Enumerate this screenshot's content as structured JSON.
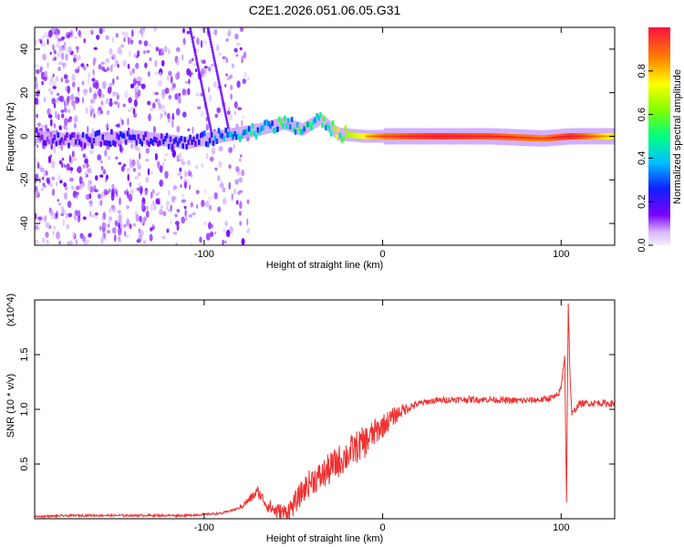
{
  "title": "C2E1.2026.051.06.05.G31",
  "colors": {
    "snr_line": "#f03030",
    "axis": "#000000",
    "background": "#ffffff"
  },
  "chart_data": [
    {
      "type": "heatmap",
      "name": "spectrogram",
      "xlabel": "Height of straight line (km)",
      "ylabel": "Frequency (Hz)",
      "xlim": [
        -195,
        130
      ],
      "ylim": [
        -50,
        50
      ],
      "xticks": [
        -100,
        0,
        100
      ],
      "yticks": [
        -40,
        -20,
        0,
        20,
        40
      ],
      "xtick_labels": [
        "-100",
        "0",
        "100"
      ],
      "ytick_labels": [
        "-40",
        "-20",
        "0",
        "20",
        "40"
      ],
      "colorbar": {
        "label": "Normalized spectral amplitude",
        "range": [
          0,
          1
        ],
        "ticks": [
          0.0,
          0.2,
          0.4,
          0.6,
          0.8
        ],
        "tick_labels": [
          "0.0",
          "0.2",
          "0.4",
          "0.6",
          "0.8"
        ]
      },
      "ridge": [
        {
          "x": -195,
          "f": 0,
          "amp": 0.15
        },
        {
          "x": -170,
          "f": -2,
          "amp": 0.2
        },
        {
          "x": -140,
          "f": 0,
          "amp": 0.2
        },
        {
          "x": -110,
          "f": -3,
          "amp": 0.2
        },
        {
          "x": -90,
          "f": 0,
          "amp": 0.3
        },
        {
          "x": -70,
          "f": 3,
          "amp": 0.4
        },
        {
          "x": -55,
          "f": 6,
          "amp": 0.45
        },
        {
          "x": -45,
          "f": 3,
          "amp": 0.45
        },
        {
          "x": -35,
          "f": 8,
          "amp": 0.45
        },
        {
          "x": -25,
          "f": 1,
          "amp": 0.6
        },
        {
          "x": -10,
          "f": 0,
          "amp": 0.75
        },
        {
          "x": 0,
          "f": 0,
          "amp": 0.85
        },
        {
          "x": 30,
          "f": 0,
          "amp": 0.95
        },
        {
          "x": 60,
          "f": 0,
          "amp": 0.9
        },
        {
          "x": 90,
          "f": -1,
          "amp": 0.85
        },
        {
          "x": 105,
          "f": 0,
          "amp": 0.95
        },
        {
          "x": 130,
          "f": 0,
          "amp": 0.7
        }
      ]
    },
    {
      "type": "line",
      "name": "snr",
      "xlabel": "Height of straight line (km)",
      "ylabel": "SNR (10 * v/v)",
      "y_scale_label": "(x10^4)",
      "xlim": [
        -195,
        130
      ],
      "ylim": [
        0,
        2.0
      ],
      "xticks": [
        -100,
        0,
        100
      ],
      "yticks": [
        0.5,
        1.0,
        1.5
      ],
      "xtick_labels": [
        "-100",
        "0",
        "100"
      ],
      "ytick_labels": [
        "0.5",
        "1.0",
        "1.5"
      ],
      "series": [
        {
          "name": "SNR",
          "x": [
            -195,
            -170,
            -140,
            -110,
            -90,
            -80,
            -75,
            -70,
            -65,
            -60,
            -55,
            -50,
            -45,
            -40,
            -35,
            -30,
            -25,
            -20,
            -15,
            -10,
            -5,
            0,
            5,
            10,
            15,
            20,
            25,
            30,
            40,
            50,
            60,
            70,
            80,
            90,
            98,
            100,
            102,
            103,
            104,
            105,
            106,
            108,
            110,
            120,
            130
          ],
          "values": [
            0.02,
            0.03,
            0.03,
            0.03,
            0.05,
            0.1,
            0.17,
            0.25,
            0.13,
            0.07,
            0.05,
            0.12,
            0.25,
            0.35,
            0.38,
            0.45,
            0.52,
            0.58,
            0.65,
            0.7,
            0.78,
            0.85,
            0.92,
            0.98,
            1.02,
            1.05,
            1.07,
            1.08,
            1.09,
            1.09,
            1.09,
            1.08,
            1.08,
            1.09,
            1.12,
            1.2,
            1.5,
            0.15,
            1.95,
            1.3,
            0.95,
            1.0,
            1.05,
            1.06,
            1.05
          ]
        }
      ]
    }
  ]
}
